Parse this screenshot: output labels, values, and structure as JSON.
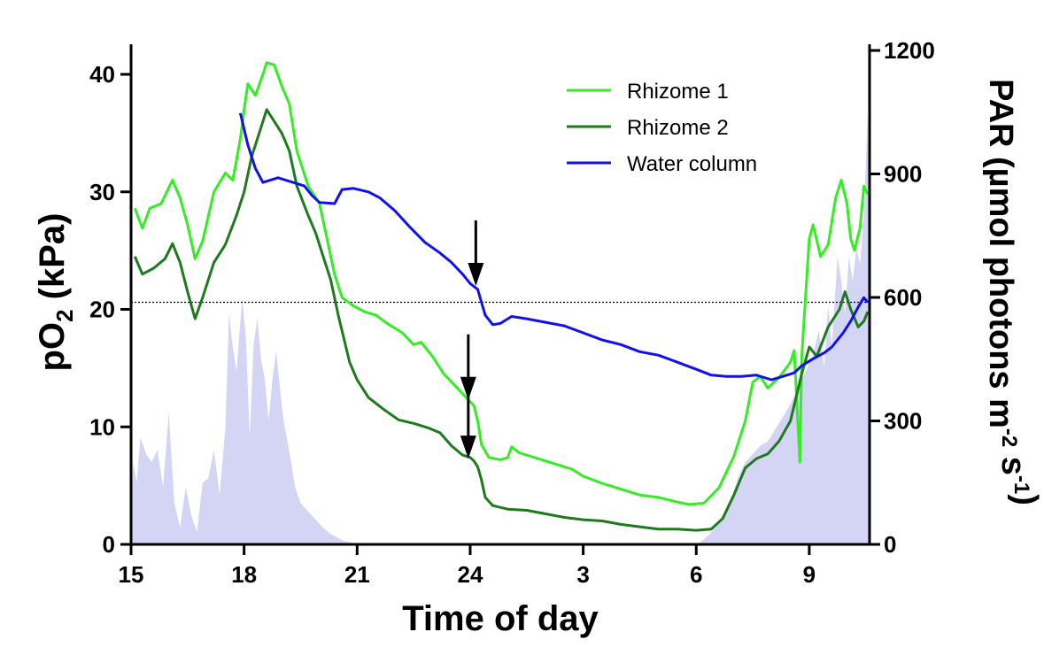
{
  "chart_data": {
    "type": "line",
    "title": "",
    "xlabel": "Time of day",
    "ylabel_left": "pO₂ (kPa)",
    "ylabel_right": "PAR (µmol photons m⁻² s⁻¹)",
    "x_unit": "hours since 15:00",
    "xlim": [
      0,
      19.6
    ],
    "ylim_left": [
      0,
      42
    ],
    "ylim_right": [
      0,
      1200
    ],
    "x_ticks": [
      {
        "x": 0,
        "label": "15"
      },
      {
        "x": 3,
        "label": "18"
      },
      {
        "x": 6,
        "label": "21"
      },
      {
        "x": 9,
        "label": "24"
      },
      {
        "x": 12,
        "label": "3"
      },
      {
        "x": 15,
        "label": "6"
      },
      {
        "x": 18,
        "label": "9"
      }
    ],
    "y_ticks_left": [
      {
        "v": 0,
        "label": "0"
      },
      {
        "v": 10,
        "label": "10"
      },
      {
        "v": 20,
        "label": "20"
      },
      {
        "v": 30,
        "label": "30"
      },
      {
        "v": 40,
        "label": "40"
      }
    ],
    "y_ticks_right": [
      {
        "v": 0,
        "label": "0"
      },
      {
        "v": 300,
        "label": "300"
      },
      {
        "v": 600,
        "label": "600"
      },
      {
        "v": 900,
        "label": "900"
      },
      {
        "v": 1200,
        "label": "1200"
      }
    ],
    "reference_line": {
      "value": 20.6,
      "style": "dotted"
    },
    "legend": {
      "position": "top-right",
      "entries": [
        "Rhizome 1",
        "Rhizome 2",
        "Water column"
      ]
    },
    "series": [
      {
        "name": "Rhizome 1",
        "axis": "left",
        "color": "#33ee22",
        "points": [
          [
            0.1,
            28.6
          ],
          [
            0.3,
            26.9
          ],
          [
            0.5,
            28.6
          ],
          [
            0.8,
            29.0
          ],
          [
            1.1,
            31.0
          ],
          [
            1.3,
            29.5
          ],
          [
            1.5,
            27.2
          ],
          [
            1.7,
            24.3
          ],
          [
            1.9,
            25.8
          ],
          [
            2.2,
            30.0
          ],
          [
            2.5,
            31.6
          ],
          [
            2.7,
            31.0
          ],
          [
            2.9,
            34.5
          ],
          [
            3.0,
            37.0
          ],
          [
            3.1,
            39.2
          ],
          [
            3.3,
            38.2
          ],
          [
            3.5,
            40.0
          ],
          [
            3.6,
            41.0
          ],
          [
            3.8,
            40.8
          ],
          [
            4.0,
            39.0
          ],
          [
            4.2,
            37.5
          ],
          [
            4.4,
            33.5
          ],
          [
            4.7,
            30.5
          ],
          [
            5.0,
            29.0
          ],
          [
            5.2,
            26.0
          ],
          [
            5.4,
            23.0
          ],
          [
            5.6,
            21.0
          ],
          [
            5.9,
            20.3
          ],
          [
            6.2,
            19.8
          ],
          [
            6.5,
            19.5
          ],
          [
            6.8,
            18.8
          ],
          [
            7.2,
            18.0
          ],
          [
            7.5,
            17.0
          ],
          [
            7.7,
            17.2
          ],
          [
            8.0,
            16.0
          ],
          [
            8.3,
            14.5
          ],
          [
            8.6,
            13.5
          ],
          [
            8.9,
            12.5
          ],
          [
            9.1,
            11.8
          ],
          [
            9.2,
            10.5
          ],
          [
            9.3,
            8.5
          ],
          [
            9.5,
            7.4
          ],
          [
            9.8,
            7.2
          ],
          [
            10.0,
            7.4
          ],
          [
            10.1,
            8.3
          ],
          [
            10.3,
            7.8
          ],
          [
            10.8,
            7.3
          ],
          [
            11.3,
            6.8
          ],
          [
            11.7,
            6.4
          ],
          [
            12.0,
            5.8
          ],
          [
            12.5,
            5.2
          ],
          [
            13.0,
            4.7
          ],
          [
            13.5,
            4.2
          ],
          [
            14.0,
            4.0
          ],
          [
            14.5,
            3.6
          ],
          [
            14.8,
            3.4
          ],
          [
            15.2,
            3.5
          ],
          [
            15.6,
            4.8
          ],
          [
            16.0,
            7.5
          ],
          [
            16.3,
            10.5
          ],
          [
            16.5,
            13.8
          ],
          [
            16.7,
            14.3
          ],
          [
            16.9,
            13.3
          ],
          [
            17.2,
            14.2
          ],
          [
            17.5,
            15.5
          ],
          [
            17.6,
            16.5
          ],
          [
            17.75,
            7.0
          ],
          [
            17.8,
            16.0
          ],
          [
            18.0,
            26.0
          ],
          [
            18.1,
            27.2
          ],
          [
            18.3,
            24.5
          ],
          [
            18.5,
            25.5
          ],
          [
            18.7,
            29.5
          ],
          [
            18.85,
            31.0
          ],
          [
            19.0,
            29.0
          ],
          [
            19.1,
            26.0
          ],
          [
            19.2,
            25.0
          ],
          [
            19.35,
            27.0
          ],
          [
            19.45,
            30.5
          ],
          [
            19.55,
            29.8
          ]
        ]
      },
      {
        "name": "Rhizome 2",
        "axis": "left",
        "color": "#1e7a1e",
        "points": [
          [
            0.1,
            24.5
          ],
          [
            0.3,
            23.0
          ],
          [
            0.6,
            23.5
          ],
          [
            0.9,
            24.3
          ],
          [
            1.1,
            25.6
          ],
          [
            1.3,
            24.0
          ],
          [
            1.5,
            21.5
          ],
          [
            1.7,
            19.2
          ],
          [
            1.9,
            21.0
          ],
          [
            2.2,
            24.0
          ],
          [
            2.5,
            25.5
          ],
          [
            2.8,
            28.0
          ],
          [
            3.0,
            30.0
          ],
          [
            3.2,
            33.0
          ],
          [
            3.4,
            35.0
          ],
          [
            3.6,
            37.0
          ],
          [
            3.8,
            36.0
          ],
          [
            4.0,
            35.0
          ],
          [
            4.2,
            33.5
          ],
          [
            4.4,
            30.5
          ],
          [
            4.7,
            28.0
          ],
          [
            4.9,
            26.5
          ],
          [
            5.1,
            24.5
          ],
          [
            5.3,
            22.5
          ],
          [
            5.5,
            19.5
          ],
          [
            5.8,
            15.5
          ],
          [
            6.0,
            14.0
          ],
          [
            6.3,
            12.5
          ],
          [
            6.7,
            11.5
          ],
          [
            7.1,
            10.6
          ],
          [
            7.5,
            10.3
          ],
          [
            7.9,
            9.9
          ],
          [
            8.2,
            9.5
          ],
          [
            8.5,
            8.4
          ],
          [
            8.8,
            7.6
          ],
          [
            9.0,
            7.4
          ],
          [
            9.1,
            7.1
          ],
          [
            9.2,
            6.6
          ],
          [
            9.3,
            5.5
          ],
          [
            9.4,
            4.0
          ],
          [
            9.6,
            3.3
          ],
          [
            10.0,
            3.0
          ],
          [
            10.5,
            2.9
          ],
          [
            11.0,
            2.6
          ],
          [
            11.5,
            2.3
          ],
          [
            12.0,
            2.1
          ],
          [
            12.5,
            2.0
          ],
          [
            13.0,
            1.7
          ],
          [
            13.5,
            1.5
          ],
          [
            14.0,
            1.3
          ],
          [
            14.5,
            1.3
          ],
          [
            15.0,
            1.2
          ],
          [
            15.4,
            1.3
          ],
          [
            15.7,
            2.2
          ],
          [
            16.0,
            4.2
          ],
          [
            16.3,
            6.5
          ],
          [
            16.6,
            7.3
          ],
          [
            16.9,
            7.7
          ],
          [
            17.2,
            8.8
          ],
          [
            17.5,
            10.5
          ],
          [
            17.8,
            14.5
          ],
          [
            18.0,
            16.8
          ],
          [
            18.2,
            16.0
          ],
          [
            18.5,
            18.5
          ],
          [
            18.8,
            20.0
          ],
          [
            18.95,
            21.5
          ],
          [
            19.1,
            20.0
          ],
          [
            19.3,
            18.5
          ],
          [
            19.45,
            19.0
          ],
          [
            19.55,
            19.8
          ]
        ]
      },
      {
        "name": "Water column",
        "axis": "left",
        "color": "#1010ee",
        "points": [
          [
            2.9,
            36.7
          ],
          [
            3.1,
            34.0
          ],
          [
            3.3,
            32.0
          ],
          [
            3.5,
            30.8
          ],
          [
            3.9,
            31.2
          ],
          [
            4.3,
            30.8
          ],
          [
            4.6,
            30.5
          ],
          [
            4.8,
            29.7
          ],
          [
            5.0,
            29.1
          ],
          [
            5.4,
            29.0
          ],
          [
            5.6,
            30.2
          ],
          [
            5.9,
            30.3
          ],
          [
            6.3,
            30.0
          ],
          [
            6.6,
            29.5
          ],
          [
            7.0,
            28.4
          ],
          [
            7.4,
            27.0
          ],
          [
            7.8,
            25.7
          ],
          [
            8.2,
            24.8
          ],
          [
            8.5,
            24.0
          ],
          [
            8.8,
            23.0
          ],
          [
            9.0,
            22.2
          ],
          [
            9.2,
            21.7
          ],
          [
            9.3,
            20.6
          ],
          [
            9.4,
            19.5
          ],
          [
            9.6,
            18.7
          ],
          [
            9.8,
            18.8
          ],
          [
            10.1,
            19.4
          ],
          [
            10.5,
            19.2
          ],
          [
            11.0,
            18.9
          ],
          [
            11.5,
            18.6
          ],
          [
            12.0,
            18.0
          ],
          [
            12.5,
            17.4
          ],
          [
            13.0,
            17.0
          ],
          [
            13.5,
            16.4
          ],
          [
            14.0,
            16.1
          ],
          [
            14.5,
            15.5
          ],
          [
            15.0,
            14.9
          ],
          [
            15.4,
            14.4
          ],
          [
            15.8,
            14.3
          ],
          [
            16.2,
            14.3
          ],
          [
            16.6,
            14.4
          ],
          [
            16.8,
            14.2
          ],
          [
            17.0,
            14.0
          ],
          [
            17.3,
            14.3
          ],
          [
            17.6,
            14.6
          ],
          [
            17.8,
            15.2
          ],
          [
            18.1,
            15.8
          ],
          [
            18.4,
            16.3
          ],
          [
            18.6,
            16.8
          ],
          [
            18.9,
            18.0
          ],
          [
            19.1,
            19.0
          ],
          [
            19.3,
            20.2
          ],
          [
            19.45,
            21.0
          ],
          [
            19.55,
            20.6
          ]
        ]
      }
    ],
    "par_area": {
      "name": "PAR",
      "axis": "right",
      "color": "#d4d4f4",
      "points": [
        [
          0.0,
          0
        ],
        [
          0.05,
          200
        ],
        [
          0.15,
          150
        ],
        [
          0.25,
          260
        ],
        [
          0.4,
          220
        ],
        [
          0.55,
          200
        ],
        [
          0.7,
          230
        ],
        [
          0.85,
          140
        ],
        [
          1.0,
          320
        ],
        [
          1.15,
          100
        ],
        [
          1.3,
          40
        ],
        [
          1.45,
          140
        ],
        [
          1.6,
          70
        ],
        [
          1.75,
          30
        ],
        [
          1.9,
          150
        ],
        [
          2.05,
          160
        ],
        [
          2.2,
          230
        ],
        [
          2.35,
          120
        ],
        [
          2.5,
          280
        ],
        [
          2.6,
          560
        ],
        [
          2.7,
          480
        ],
        [
          2.8,
          420
        ],
        [
          2.95,
          600
        ],
        [
          3.05,
          500
        ],
        [
          3.15,
          260
        ],
        [
          3.25,
          480
        ],
        [
          3.35,
          550
        ],
        [
          3.45,
          450
        ],
        [
          3.55,
          400
        ],
        [
          3.65,
          300
        ],
        [
          3.75,
          400
        ],
        [
          3.85,
          470
        ],
        [
          3.95,
          380
        ],
        [
          4.05,
          300
        ],
        [
          4.15,
          250
        ],
        [
          4.25,
          200
        ],
        [
          4.35,
          140
        ],
        [
          4.5,
          100
        ],
        [
          4.7,
          80
        ],
        [
          4.9,
          60
        ],
        [
          5.1,
          40
        ],
        [
          5.3,
          25
        ],
        [
          5.6,
          10
        ],
        [
          5.9,
          3
        ],
        [
          6.1,
          0
        ],
        [
          14.9,
          0
        ],
        [
          15.1,
          5
        ],
        [
          15.3,
          20
        ],
        [
          15.5,
          40
        ],
        [
          15.7,
          70
        ],
        [
          15.9,
          100
        ],
        [
          16.1,
          160
        ],
        [
          16.3,
          200
        ],
        [
          16.5,
          220
        ],
        [
          16.7,
          240
        ],
        [
          16.9,
          250
        ],
        [
          17.1,
          280
        ],
        [
          17.3,
          310
        ],
        [
          17.5,
          340
        ],
        [
          17.7,
          380
        ],
        [
          17.9,
          420
        ],
        [
          18.1,
          460
        ],
        [
          18.25,
          520
        ],
        [
          18.4,
          430
        ],
        [
          18.5,
          580
        ],
        [
          18.6,
          480
        ],
        [
          18.75,
          700
        ],
        [
          18.85,
          640
        ],
        [
          18.95,
          560
        ],
        [
          19.05,
          700
        ],
        [
          19.15,
          640
        ],
        [
          19.25,
          720
        ],
        [
          19.35,
          680
        ],
        [
          19.45,
          800
        ],
        [
          19.55,
          1050
        ],
        [
          19.6,
          600
        ],
        [
          19.6,
          0
        ]
      ]
    },
    "annotations": [
      {
        "type": "arrow",
        "x": 9.15,
        "y": 22.0,
        "direction": "down"
      },
      {
        "type": "arrow",
        "x": 8.95,
        "y": 12.3,
        "direction": "down"
      },
      {
        "type": "arrow",
        "x": 8.95,
        "y": 7.3,
        "direction": "down"
      }
    ]
  }
}
